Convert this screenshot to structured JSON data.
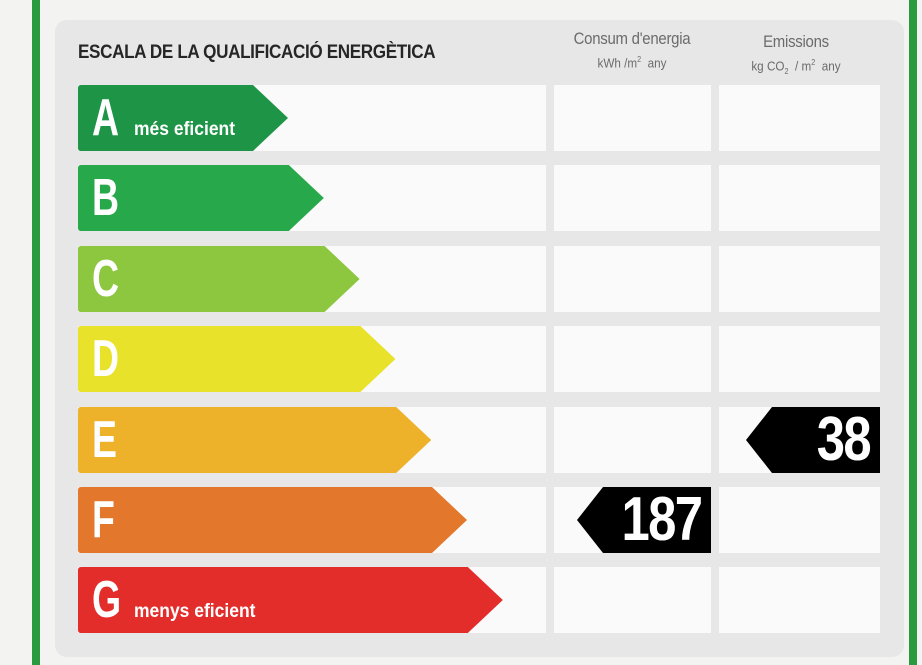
{
  "title": "ESCALA DE LA QUALIFICACIÓ ENERGÈTICA",
  "columns": {
    "consum": {
      "label": "Consum d'energia",
      "unit_prefix": "kWh /m",
      "unit_sup": "2",
      "unit_suffix": "any"
    },
    "emissions": {
      "label": "Emissions",
      "unit_prefix": "kg CO",
      "unit_sub": "2",
      "unit_mid": "/ m",
      "unit_sup": "2",
      "unit_suffix": "any"
    }
  },
  "chart_data": {
    "type": "table",
    "grades": [
      {
        "letter": "A",
        "label": "més eficient",
        "color": "#1e9447"
      },
      {
        "letter": "B",
        "label": "",
        "color": "#27a84a"
      },
      {
        "letter": "C",
        "label": "",
        "color": "#8dc63f"
      },
      {
        "letter": "D",
        "label": "",
        "color": "#e9e22b"
      },
      {
        "letter": "E",
        "label": "",
        "color": "#eeb12a"
      },
      {
        "letter": "F",
        "label": "",
        "color": "#e3772b"
      },
      {
        "letter": "G",
        "label": "menys eficient",
        "color": "#e22d2b"
      }
    ],
    "ratings": {
      "consum": {
        "grade": "F",
        "value": "187"
      },
      "emissions": {
        "grade": "E",
        "value": "38"
      }
    }
  },
  "colors": {
    "frame": "#2a9a3f",
    "marker": "#000000"
  }
}
